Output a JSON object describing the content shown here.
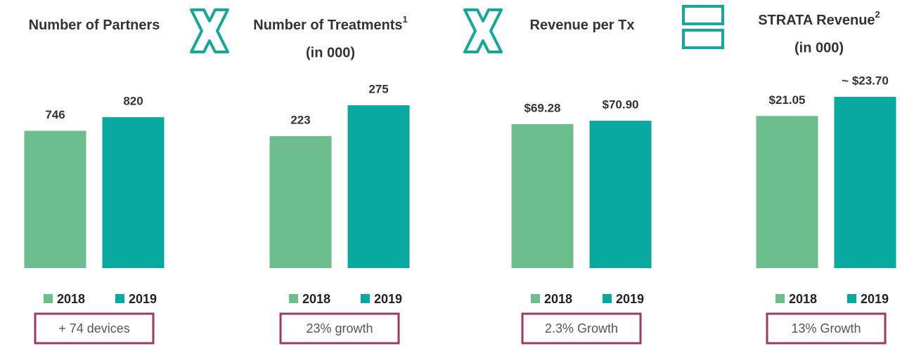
{
  "chart_data": [
    {
      "type": "bar",
      "title": "Number of Partners",
      "series": [
        {
          "name": "2018",
          "color": "#6cbf8c",
          "values": [
            746
          ]
        },
        {
          "name": "2019",
          "color": "#08aa9f",
          "values": [
            820
          ]
        }
      ],
      "annotation": "+ 74 devices"
    },
    {
      "type": "bar",
      "title": "Number of Treatments",
      "title_note": "1",
      "subtitle": "(in 000)",
      "series": [
        {
          "name": "2018",
          "color": "#6cbf8c",
          "values": [
            223
          ]
        },
        {
          "name": "2019",
          "color": "#08aa9f",
          "values": [
            275
          ]
        }
      ],
      "annotation": "23% growth"
    },
    {
      "type": "bar",
      "title": "Revenue per Tx",
      "series": [
        {
          "name": "2018",
          "color": "#6cbf8c",
          "values": [
            69.28
          ],
          "value_labels": [
            "$69.28"
          ]
        },
        {
          "name": "2019",
          "color": "#08aa9f",
          "values": [
            70.9
          ],
          "value_labels": [
            "$70.90"
          ]
        }
      ],
      "annotation": "2.3% Growth"
    },
    {
      "type": "bar",
      "title": "STRATA Revenue",
      "title_note": "2",
      "subtitle": "(in 000)",
      "series": [
        {
          "name": "2018",
          "color": "#6cbf8c",
          "values": [
            21.05
          ],
          "value_labels": [
            "$21.05"
          ]
        },
        {
          "name": "2019",
          "color": "#08aa9f",
          "values": [
            23.7
          ],
          "value_labels": [
            "~ $23.70"
          ]
        }
      ],
      "annotation": "13% Growth"
    }
  ]
}
